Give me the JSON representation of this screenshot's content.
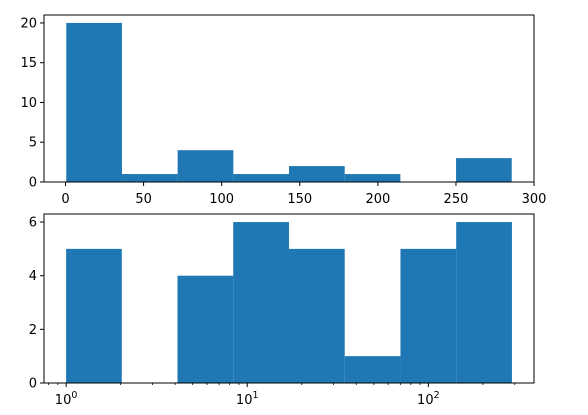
{
  "chart_data": [
    {
      "type": "bar",
      "subtype": "histogram",
      "bin_edges": [
        0.5,
        36.15,
        71.8,
        107.45,
        143.1,
        178.75,
        214.4,
        250.05,
        285.7
      ],
      "values": [
        20,
        1,
        4,
        1,
        2,
        1,
        0,
        3
      ],
      "xlim": [
        -13.76,
        299.96
      ],
      "ylim": [
        0,
        21
      ],
      "x_scale": "linear",
      "xticks": [
        0,
        50,
        100,
        150,
        200,
        250,
        300
      ],
      "xtick_labels": [
        "0",
        "50",
        "100",
        "150",
        "200",
        "250",
        "300"
      ],
      "yticks": [
        0,
        5,
        10,
        15,
        20
      ],
      "ytick_labels": [
        "0",
        "5",
        "10",
        "15",
        "20"
      ],
      "color": "#1f77b4",
      "title": "",
      "xlabel": "",
      "ylabel": "",
      "grid": false,
      "legend": false
    },
    {
      "type": "bar",
      "subtype": "histogram",
      "bin_edges": [
        1.0,
        2.03,
        4.12,
        8.37,
        17.0,
        34.53,
        70.14,
        142.47,
        289.4
      ],
      "values": [
        5,
        0,
        4,
        6,
        5,
        1,
        5,
        6
      ],
      "xlim": [
        0.755,
        383.1
      ],
      "ylim": [
        0,
        6.3
      ],
      "x_scale": "log",
      "xticks": [
        1,
        10,
        100
      ],
      "xtick_labels": [
        {
          "base": "10",
          "exp": "0"
        },
        {
          "base": "10",
          "exp": "1"
        },
        {
          "base": "10",
          "exp": "2"
        }
      ],
      "yticks": [
        0,
        2,
        4,
        6
      ],
      "ytick_labels": [
        "0",
        "2",
        "4",
        "6"
      ],
      "color": "#1f77b4",
      "title": "",
      "xlabel": "",
      "ylabel": "",
      "grid": false,
      "legend": false
    }
  ]
}
